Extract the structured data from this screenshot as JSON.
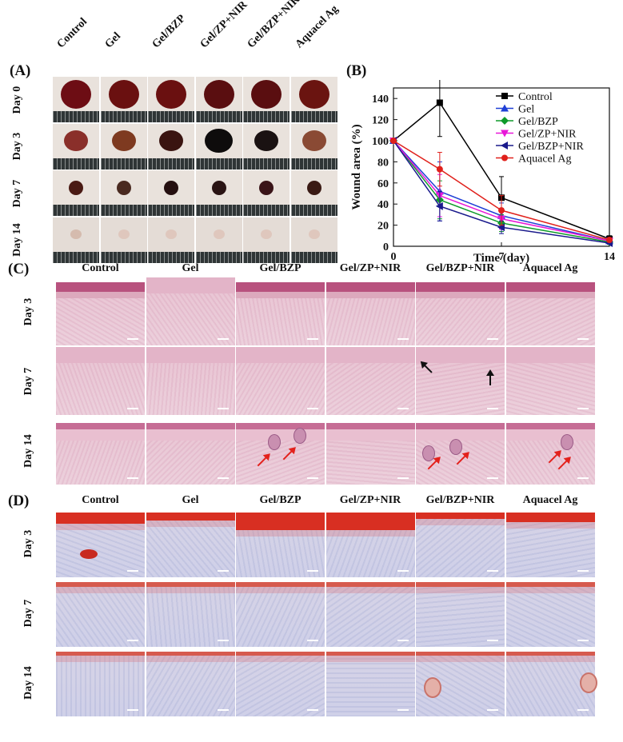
{
  "panels": {
    "a": {
      "letter": "(A)",
      "groups": [
        "Control",
        "Gel",
        "Gel/BZP",
        "Gel/ZP+NIR",
        "Gel/BZP+NIR",
        "Aquacel Ag"
      ],
      "days": [
        "Day 0",
        "Day 3",
        "Day 7",
        "Day 14"
      ]
    },
    "b": {
      "letter": "(B)"
    },
    "c": {
      "letter": "(C)",
      "groups": [
        "Control",
        "Gel",
        "Gel/BZP",
        "Gel/ZP+NIR",
        "Gel/BZP+NIR",
        "Aquacel Ag"
      ],
      "days": [
        "Day 3",
        "Day 7",
        "Day 14"
      ]
    },
    "d": {
      "letter": "(D)",
      "groups": [
        "Control",
        "Gel",
        "Gel/BZP",
        "Gel/ZP+NIR",
        "Gel/BZP+NIR",
        "Aquacel Ag"
      ],
      "days": [
        "Day 3",
        "Day 7",
        "Day 14"
      ]
    }
  },
  "chart_data": {
    "type": "line",
    "xlabel": "Time (day)",
    "ylabel": "Wound area (%)",
    "x": [
      0,
      3,
      7,
      14
    ],
    "xticks": [
      0,
      7,
      14
    ],
    "yticks": [
      0,
      20,
      40,
      60,
      80,
      100,
      120,
      140
    ],
    "xlim": [
      0,
      14
    ],
    "ylim": [
      0,
      150
    ],
    "legend_position": "top-right",
    "series": [
      {
        "name": "Control",
        "color": "#000000",
        "marker": "square",
        "values": [
          100,
          136,
          46,
          7
        ],
        "errors": [
          0,
          32,
          20,
          3
        ]
      },
      {
        "name": "Gel",
        "color": "#1f3fd6",
        "marker": "triangle-up",
        "values": [
          100,
          52,
          29,
          5
        ],
        "errors": [
          0,
          28,
          12,
          2
        ]
      },
      {
        "name": "Gel/BZP",
        "color": "#0e9a2a",
        "marker": "diamond",
        "values": [
          100,
          44,
          22,
          4
        ],
        "errors": [
          0,
          18,
          8,
          2
        ]
      },
      {
        "name": "Gel/ZP+NIR",
        "color": "#e817d8",
        "marker": "triangle-down",
        "values": [
          100,
          48,
          26,
          5
        ],
        "errors": [
          0,
          20,
          10,
          2
        ]
      },
      {
        "name": "Gel/BZP+NIR",
        "color": "#1a1a8c",
        "marker": "triangle-left",
        "values": [
          100,
          38,
          18,
          3
        ],
        "errors": [
          0,
          14,
          6,
          1
        ]
      },
      {
        "name": "Aquacel Ag",
        "color": "#e0201b",
        "marker": "circle",
        "values": [
          100,
          73,
          34,
          6
        ],
        "errors": [
          0,
          16,
          14,
          2
        ]
      }
    ]
  }
}
